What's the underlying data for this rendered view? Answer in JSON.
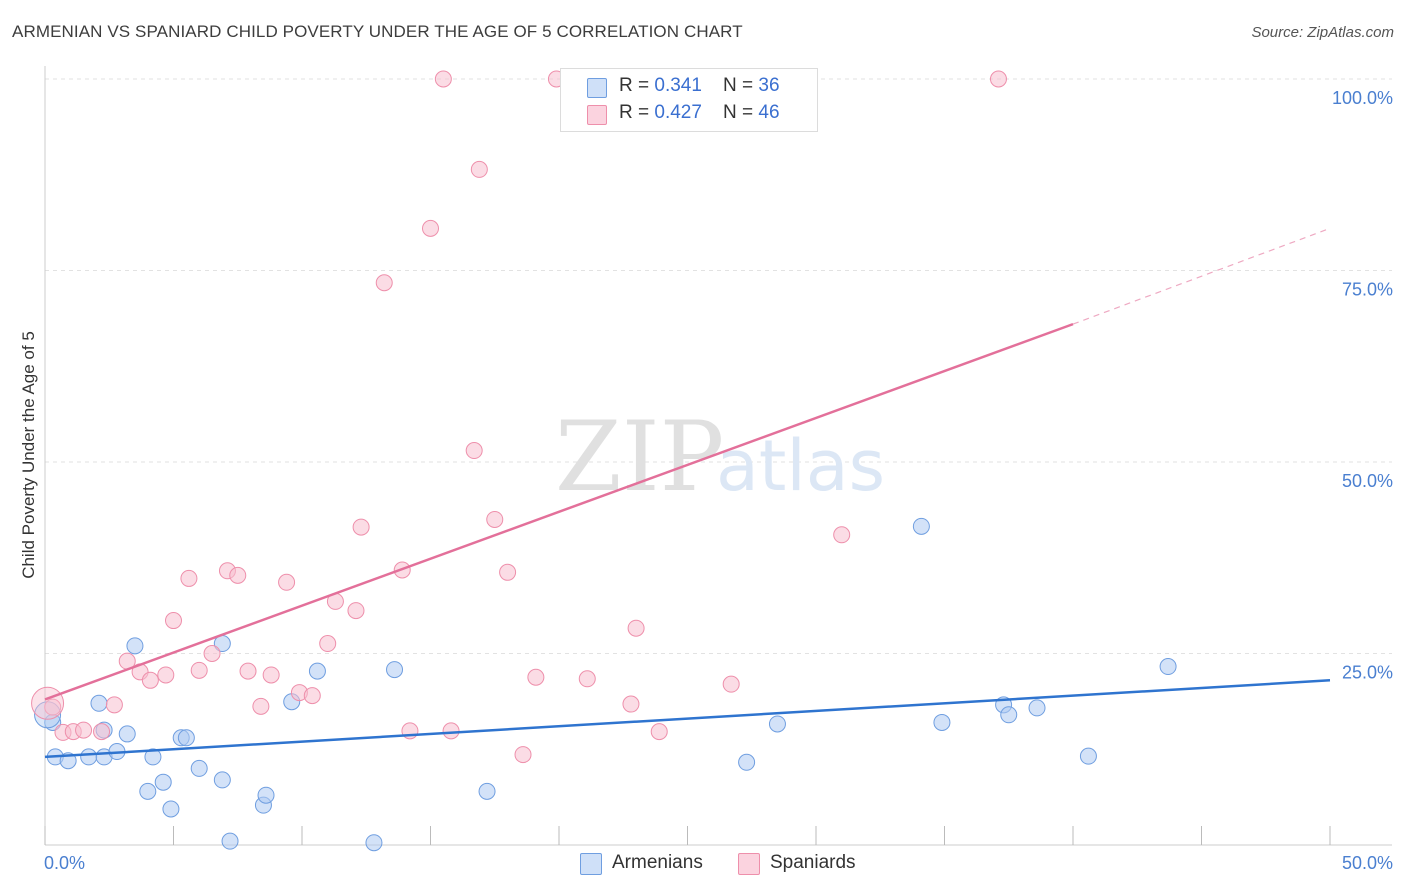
{
  "header": {
    "title": "ARMENIAN VS SPANIARD CHILD POVERTY UNDER THE AGE OF 5 CORRELATION CHART",
    "source": "Source: ZipAtlas.com"
  },
  "watermark": {
    "zip": "ZIP",
    "atlas": "atlas"
  },
  "legend": {
    "armenians": {
      "r_label": "R = ",
      "r_value": "0.341",
      "n_label": "N = ",
      "n_value": "36"
    },
    "spaniards": {
      "r_label": "R = ",
      "r_value": "0.427",
      "n_label": "N = ",
      "n_value": "46"
    }
  },
  "bottom_legend": {
    "armenians": "Armenians",
    "spaniards": "Spaniards"
  },
  "colors": {
    "armenians_fill": "#aecbf2",
    "armenians_stroke": "#6f9ee0",
    "armenians_line": "#2f74cf",
    "spaniards_fill": "#f8c0d0",
    "spaniards_stroke": "#ee8fab",
    "spaniards_line": "#e3709a",
    "tick_text": "#4a7fd0",
    "grid": "#e2e2e2"
  },
  "chart_data": {
    "type": "scatter",
    "title": "ARMENIAN VS SPANIARD CHILD POVERTY UNDER THE AGE OF 5 CORRELATION CHART",
    "xlabel": "",
    "ylabel": "Child Poverty Under the Age of 5",
    "xlim": [
      0,
      50
    ],
    "ylim": [
      0,
      100
    ],
    "x_tick_labels": [
      "0.0%",
      "50.0%"
    ],
    "y_ticks": [
      25,
      50,
      75,
      100
    ],
    "y_tick_labels": [
      "25.0%",
      "50.0%",
      "75.0%",
      "100.0%"
    ],
    "grid": true,
    "legend_position": "top-center",
    "series": [
      {
        "name": "Armenians",
        "r": 0.341,
        "n": 36,
        "points": [
          [
            0.3,
            16.0
          ],
          [
            0.4,
            11.5
          ],
          [
            0.9,
            11.0
          ],
          [
            1.7,
            11.5
          ],
          [
            2.1,
            18.5
          ],
          [
            2.3,
            15.0
          ],
          [
            2.3,
            11.5
          ],
          [
            2.8,
            12.2
          ],
          [
            3.2,
            14.5
          ],
          [
            3.5,
            26.0
          ],
          [
            4.0,
            7.0
          ],
          [
            4.2,
            11.5
          ],
          [
            4.6,
            8.2
          ],
          [
            4.9,
            4.7
          ],
          [
            5.3,
            14.0
          ],
          [
            5.5,
            14.0
          ],
          [
            6.0,
            10.0
          ],
          [
            6.9,
            8.5
          ],
          [
            6.9,
            26.3
          ],
          [
            7.2,
            0.5
          ],
          [
            8.5,
            5.2
          ],
          [
            8.6,
            6.5
          ],
          [
            9.6,
            18.7
          ],
          [
            10.6,
            22.7
          ],
          [
            12.8,
            0.3
          ],
          [
            13.6,
            22.9
          ],
          [
            17.2,
            7.0
          ],
          [
            27.3,
            10.8
          ],
          [
            28.5,
            15.8
          ],
          [
            34.1,
            41.6
          ],
          [
            34.9,
            16.0
          ],
          [
            37.3,
            18.3
          ],
          [
            37.5,
            17.0
          ],
          [
            38.6,
            17.9
          ],
          [
            40.6,
            11.6
          ],
          [
            43.7,
            23.3
          ]
        ],
        "trend": {
          "x": [
            0,
            50
          ],
          "y": [
            11.5,
            21.5
          ]
        }
      },
      {
        "name": "Spaniards",
        "r": 0.427,
        "n": 46,
        "points": [
          [
            0.3,
            18.0
          ],
          [
            0.7,
            14.7
          ],
          [
            1.1,
            14.8
          ],
          [
            1.5,
            15.0
          ],
          [
            2.2,
            14.8
          ],
          [
            2.7,
            18.3
          ],
          [
            3.2,
            24.0
          ],
          [
            3.7,
            22.6
          ],
          [
            4.1,
            21.5
          ],
          [
            4.7,
            22.2
          ],
          [
            5.0,
            29.3
          ],
          [
            5.6,
            34.8
          ],
          [
            6.0,
            22.8
          ],
          [
            6.5,
            25.0
          ],
          [
            7.1,
            35.8
          ],
          [
            7.5,
            35.2
          ],
          [
            7.9,
            22.7
          ],
          [
            8.4,
            18.1
          ],
          [
            8.8,
            22.2
          ],
          [
            9.4,
            34.3
          ],
          [
            9.9,
            19.9
          ],
          [
            10.4,
            19.5
          ],
          [
            11.0,
            26.3
          ],
          [
            11.3,
            31.8
          ],
          [
            12.1,
            30.6
          ],
          [
            12.3,
            41.5
          ],
          [
            13.2,
            73.4
          ],
          [
            13.9,
            35.9
          ],
          [
            14.2,
            14.9
          ],
          [
            15.0,
            80.5
          ],
          [
            15.5,
            100.0
          ],
          [
            15.8,
            14.9
          ],
          [
            16.7,
            51.5
          ],
          [
            16.9,
            88.2
          ],
          [
            17.5,
            42.5
          ],
          [
            18.0,
            35.6
          ],
          [
            18.6,
            11.8
          ],
          [
            19.1,
            21.9
          ],
          [
            19.9,
            100.0
          ],
          [
            21.1,
            21.7
          ],
          [
            22.8,
            18.4
          ],
          [
            23.0,
            28.3
          ],
          [
            23.9,
            14.8
          ],
          [
            26.7,
            21.0
          ],
          [
            31.0,
            40.5
          ],
          [
            37.1,
            100.0
          ]
        ],
        "trend": {
          "x": [
            0,
            40
          ],
          "y": [
            19.0,
            68.0
          ]
        },
        "trend_dashed": {
          "x": [
            40,
            50
          ],
          "y": [
            68.0,
            80.5
          ]
        }
      }
    ]
  }
}
